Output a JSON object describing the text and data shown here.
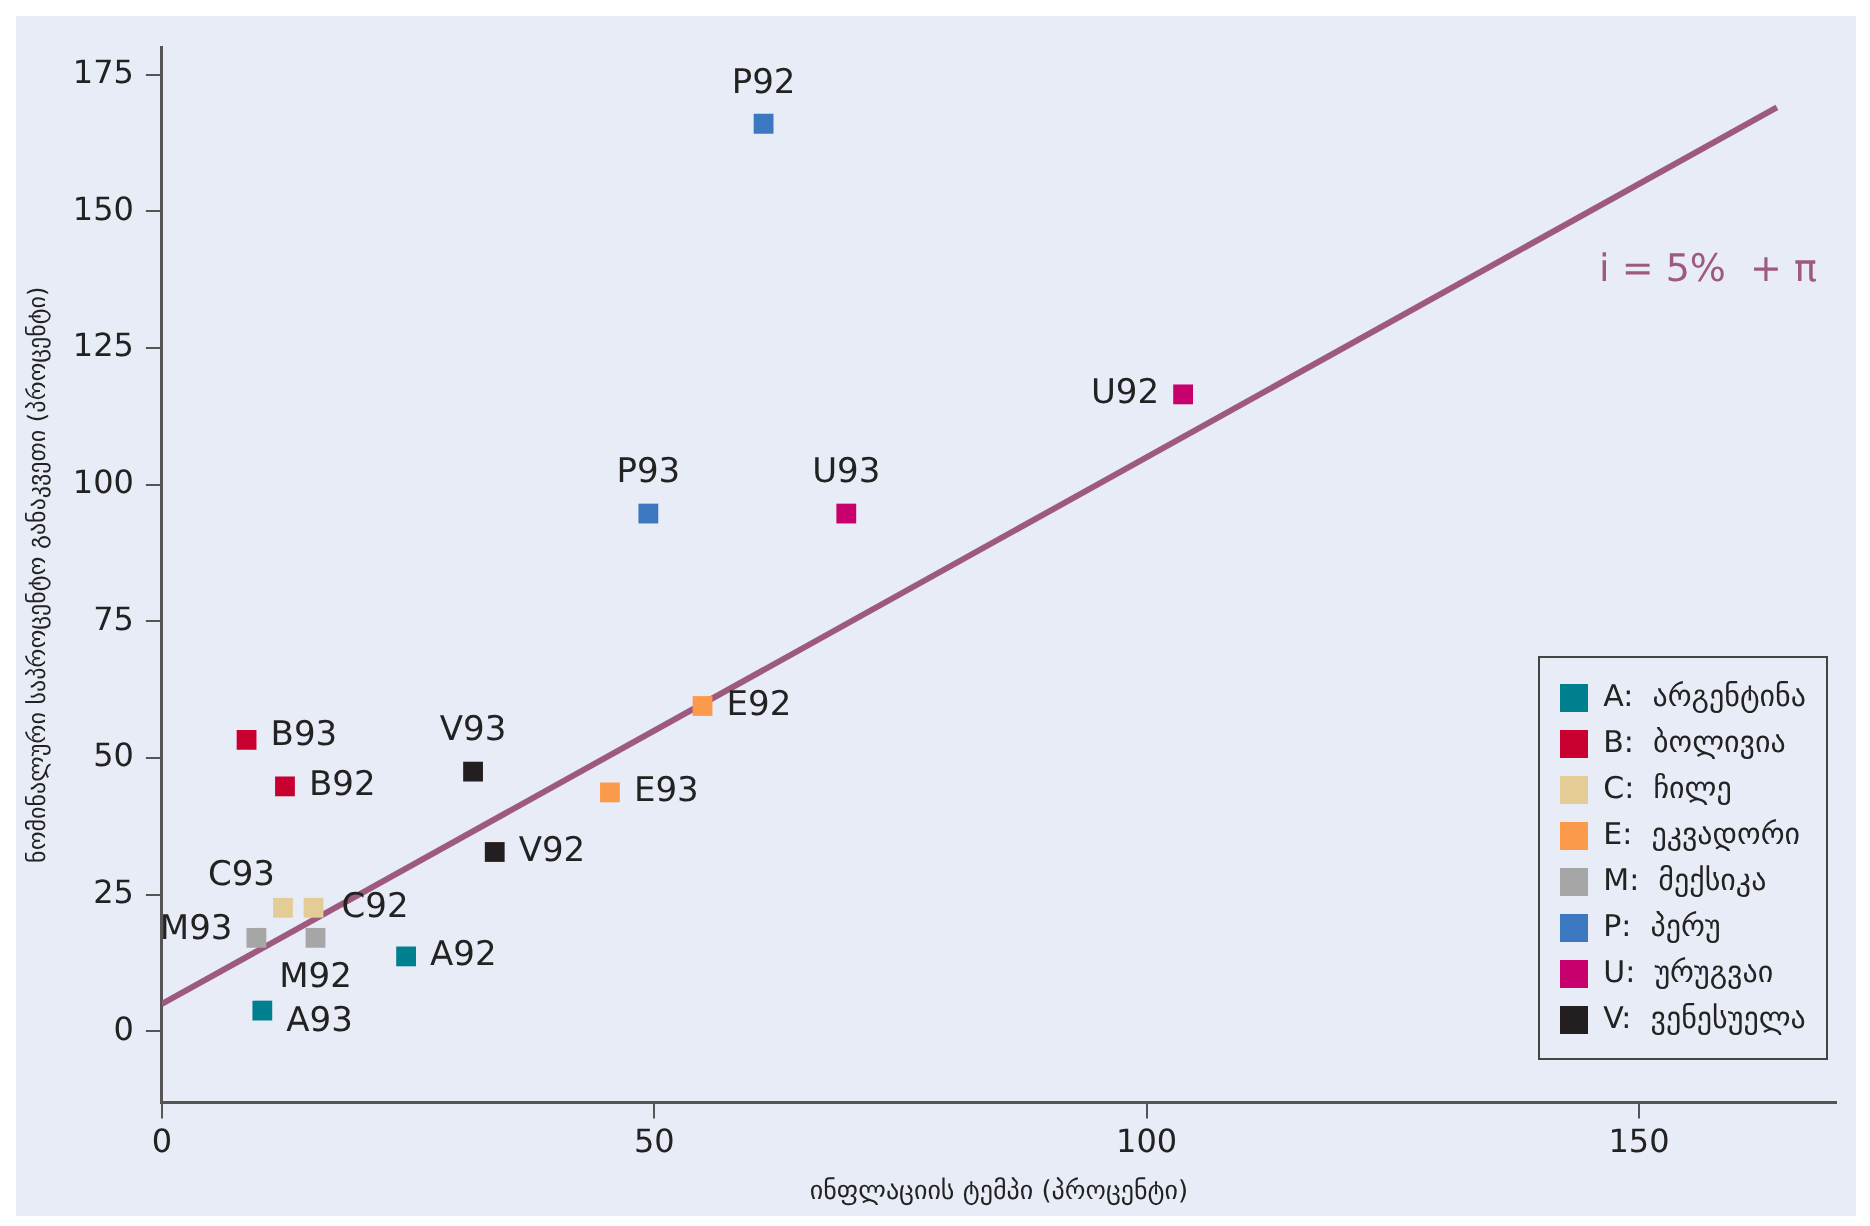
{
  "chart_data": {
    "type": "scatter",
    "xlabel": "ინფლაციის ტემპი (პროცენტი)",
    "ylabel": "ნომინალური საპროცენტო განაკვეთი (პროცენტი)",
    "xlim": [
      0,
      170
    ],
    "xticks": [
      0,
      50,
      100,
      150
    ],
    "ylim": [
      -13,
      180
    ],
    "yticks": [
      0,
      25,
      50,
      75,
      100,
      125,
      150,
      175
    ],
    "grid": false,
    "legend": "bottom right",
    "series": [
      {
        "name": "A:  არგენტინა",
        "color": "#00808f",
        "marker": "square",
        "x": [
          24.8,
          10.2
        ],
        "values": [
          13.7,
          3.8
        ]
      },
      {
        "name": "B:  ბოლივია",
        "color": "#c8002f",
        "marker": "square",
        "x": [
          12.5,
          8.6
        ],
        "values": [
          44.8,
          53.3
        ]
      },
      {
        "name": "C:  ჩილე",
        "color": "#e3cc96",
        "marker": "square",
        "x": [
          15.4,
          12.3
        ],
        "values": [
          22.6,
          22.6
        ]
      },
      {
        "name": "E:  ეკვადორი",
        "color": "#fb9a4a",
        "marker": "square",
        "x": [
          54.9,
          45.5
        ],
        "values": [
          59.5,
          43.7
        ]
      },
      {
        "name": "M:  მექსიკა",
        "color": "#a6a6a6",
        "marker": "square",
        "x": [
          15.6,
          9.6
        ],
        "values": [
          17.1,
          17.1
        ]
      },
      {
        "name": "P:  პერუ",
        "color": "#3b78bf",
        "marker": "square",
        "x": [
          61.1,
          49.4
        ],
        "values": [
          166,
          94.7
        ]
      },
      {
        "name": "U:  ურუგვაი",
        "color": "#c8006e",
        "marker": "square",
        "x": [
          103.7,
          69.5
        ],
        "values": [
          116.5,
          94.7
        ]
      },
      {
        "name": "V:  ვენესუელა",
        "color": "#231f20",
        "marker": "square",
        "x": [
          33.8,
          31.6
        ],
        "values": [
          32.8,
          47.5
        ]
      },
      {
        "name": "i = 5%  + π",
        "type": "line",
        "color": "#9e5a7e",
        "x": [
          0,
          164
        ],
        "values": [
          5,
          169
        ]
      }
    ],
    "annotations": [
      {
        "text": "A92",
        "x": 24.8,
        "y": 13.7
      },
      {
        "text": "A93",
        "x": 10.2,
        "y": 3.8
      },
      {
        "text": "B92",
        "x": 12.5,
        "y": 44.8
      },
      {
        "text": "B93",
        "x": 8.6,
        "y": 53.3
      },
      {
        "text": "C92",
        "x": 15.4,
        "y": 22.6
      },
      {
        "text": "C93",
        "x": 12.3,
        "y": 22.6
      },
      {
        "text": "E92",
        "x": 54.9,
        "y": 59.5
      },
      {
        "text": "E93",
        "x": 45.5,
        "y": 43.7
      },
      {
        "text": "M92",
        "x": 15.6,
        "y": 17.1
      },
      {
        "text": "M93",
        "x": 9.6,
        "y": 17.1
      },
      {
        "text": "P92",
        "x": 61.1,
        "y": 166
      },
      {
        "text": "P93",
        "x": 49.4,
        "y": 94.7
      },
      {
        "text": "U92",
        "x": 103.7,
        "y": 116.5
      },
      {
        "text": "U93",
        "x": 69.5,
        "y": 94.7
      },
      {
        "text": "V92",
        "x": 33.8,
        "y": 32.8
      },
      {
        "text": "V93",
        "x": 31.6,
        "y": 47.5
      }
    ]
  }
}
